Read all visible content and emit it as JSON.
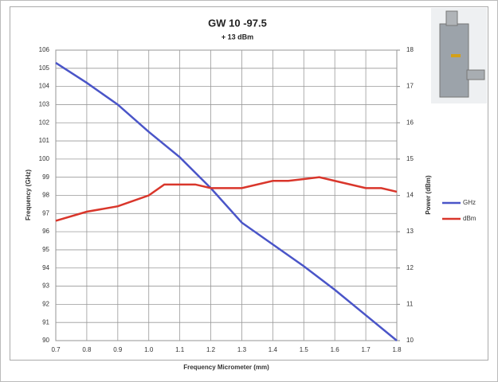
{
  "chart_data": {
    "type": "line",
    "title": "GW 10 -97.5",
    "subtitle": "+ 13 dBm",
    "x_label": "Frequency Micrometer (mm)",
    "y_label": "Frequency (GHz)",
    "y2_label": "Power (dBm)",
    "xlim": [
      0.7,
      1.8
    ],
    "xticks": [
      0.7,
      0.8,
      0.9,
      {
        "value": 1.0,
        "label": "1.0"
      },
      1.1,
      1.2,
      1.3,
      1.4,
      1.5,
      1.6,
      1.7,
      1.8
    ],
    "ylim": [
      90,
      106
    ],
    "yticks": [
      90,
      91,
      92,
      93,
      94,
      95,
      96,
      97,
      98,
      99,
      100,
      101,
      102,
      103,
      104,
      105,
      106
    ],
    "y2lim": [
      10,
      18
    ],
    "y2ticks": [
      10,
      11,
      12,
      13,
      14,
      15,
      16,
      17,
      18
    ],
    "grid": true,
    "legend": "right",
    "series": [
      {
        "name": "GHz",
        "color": "#4a55c8",
        "x": [
          0.7,
          0.8,
          0.9,
          1.0,
          1.1,
          1.2,
          1.3,
          1.4,
          1.5,
          1.6,
          1.7,
          1.8
        ],
        "values": [
          105.3,
          104.2,
          103.0,
          101.5,
          100.1,
          98.4,
          96.5,
          95.3,
          94.1,
          92.8,
          91.4,
          90.0
        ]
      },
      {
        "name": "dBm",
        "color": "#d9362b",
        "axis": "y2",
        "x": [
          0.7,
          0.8,
          0.9,
          1.0,
          1.05,
          1.1,
          1.15,
          1.2,
          1.3,
          1.4,
          1.45,
          1.5,
          1.55,
          1.6,
          1.7,
          1.75,
          1.8
        ],
        "values": [
          13.3,
          13.55,
          13.7,
          14.0,
          14.3,
          14.3,
          14.3,
          14.2,
          14.2,
          14.4,
          14.4,
          14.45,
          14.5,
          14.4,
          14.2,
          14.2,
          14.1
        ]
      }
    ]
  }
}
